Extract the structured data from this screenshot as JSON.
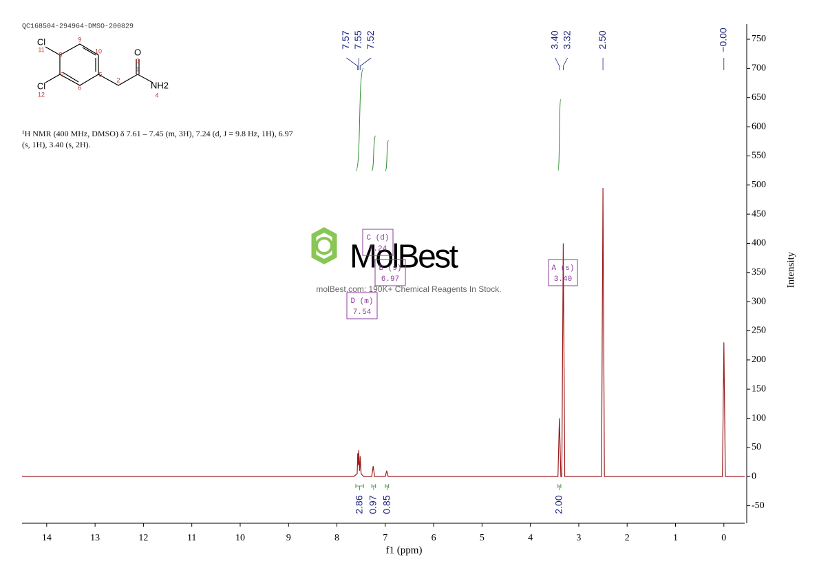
{
  "chart_data": {
    "type": "line",
    "title": "QC168504-294964-DMSO-200829",
    "description": "¹H NMR (400 MHz, DMSO) δ 7.61 – 7.45 (m, 3H), 7.24 (d, J = 9.8 Hz, 1H), 6.97 (s, 1H), 3.40 (s, 2H).",
    "x_label": "f1 (ppm)",
    "y_label": "Intensity",
    "xlim": [
      14.51,
      -0.43
    ],
    "ylim": [
      -80,
      776
    ],
    "xticks": [
      14,
      13,
      12,
      11,
      10,
      9,
      8,
      7,
      6,
      5,
      4,
      3,
      2,
      1,
      0
    ],
    "yticks": [
      -50,
      0,
      50,
      100,
      150,
      200,
      250,
      300,
      350,
      400,
      450,
      500,
      550,
      600,
      650,
      700,
      750
    ],
    "x": [
      14.51,
      7.65,
      7.58,
      7.57,
      7.56,
      7.55,
      7.54,
      7.53,
      7.52,
      7.5,
      7.45,
      7.28,
      7.25,
      7.22,
      7.0,
      6.97,
      6.94,
      3.43,
      3.4,
      3.37,
      3.35,
      3.32,
      3.29,
      2.53,
      2.5,
      2.47,
      0.03,
      0.0,
      -0.03,
      -0.43
    ],
    "series": [
      {
        "name": "spectrum",
        "color": "#9b1c1c",
        "values": [
          0,
          0,
          5,
          40,
          20,
          45,
          20,
          10,
          35,
          5,
          0,
          0,
          18,
          0,
          0,
          10,
          0,
          0,
          100,
          0,
          0,
          400,
          0,
          0,
          495,
          0,
          0,
          230,
          0,
          0
        ]
      }
    ],
    "peak_labels": [
      7.57,
      7.55,
      {
        "value": 7.52,
        "label": "7.52"
      },
      {
        "value": 3.4,
        "label": "3.40"
      },
      3.32,
      {
        "value": 2.5,
        "label": "2.50"
      },
      {
        "value": 0,
        "label": "−0.00"
      }
    ],
    "integrals": {
      "color": "#2e8b2e",
      "ranges": [
        [
          7.61,
          7.45
        ],
        [
          7.28,
          7.2
        ],
        [
          7.0,
          6.93
        ],
        [
          3.43,
          3.37
        ]
      ],
      "values": [
        2.86,
        0.97,
        0.85,
        2.0
      ],
      "value_labels": [
        "2.86",
        "0.97",
        "0.85",
        "2.00"
      ]
    },
    "multiplets": [
      {
        "name": "C (d)",
        "shift": "7.24"
      },
      {
        "name": "B (s)",
        "shift": "6.97"
      },
      {
        "name": "A (s)",
        "shift": "3.40"
      },
      {
        "name": "D (m)",
        "shift": "7.54"
      }
    ],
    "watermark": {
      "logo": "MolBest",
      "tagline": "molBest.com: 190K+ Chemical Reagents In Stock."
    },
    "molecule": {
      "atoms": [
        "Cl",
        "Cl",
        "O",
        "NH2"
      ],
      "numbers": [
        1,
        2,
        3,
        4,
        5,
        6,
        7,
        8,
        9,
        10,
        11,
        12
      ]
    }
  }
}
